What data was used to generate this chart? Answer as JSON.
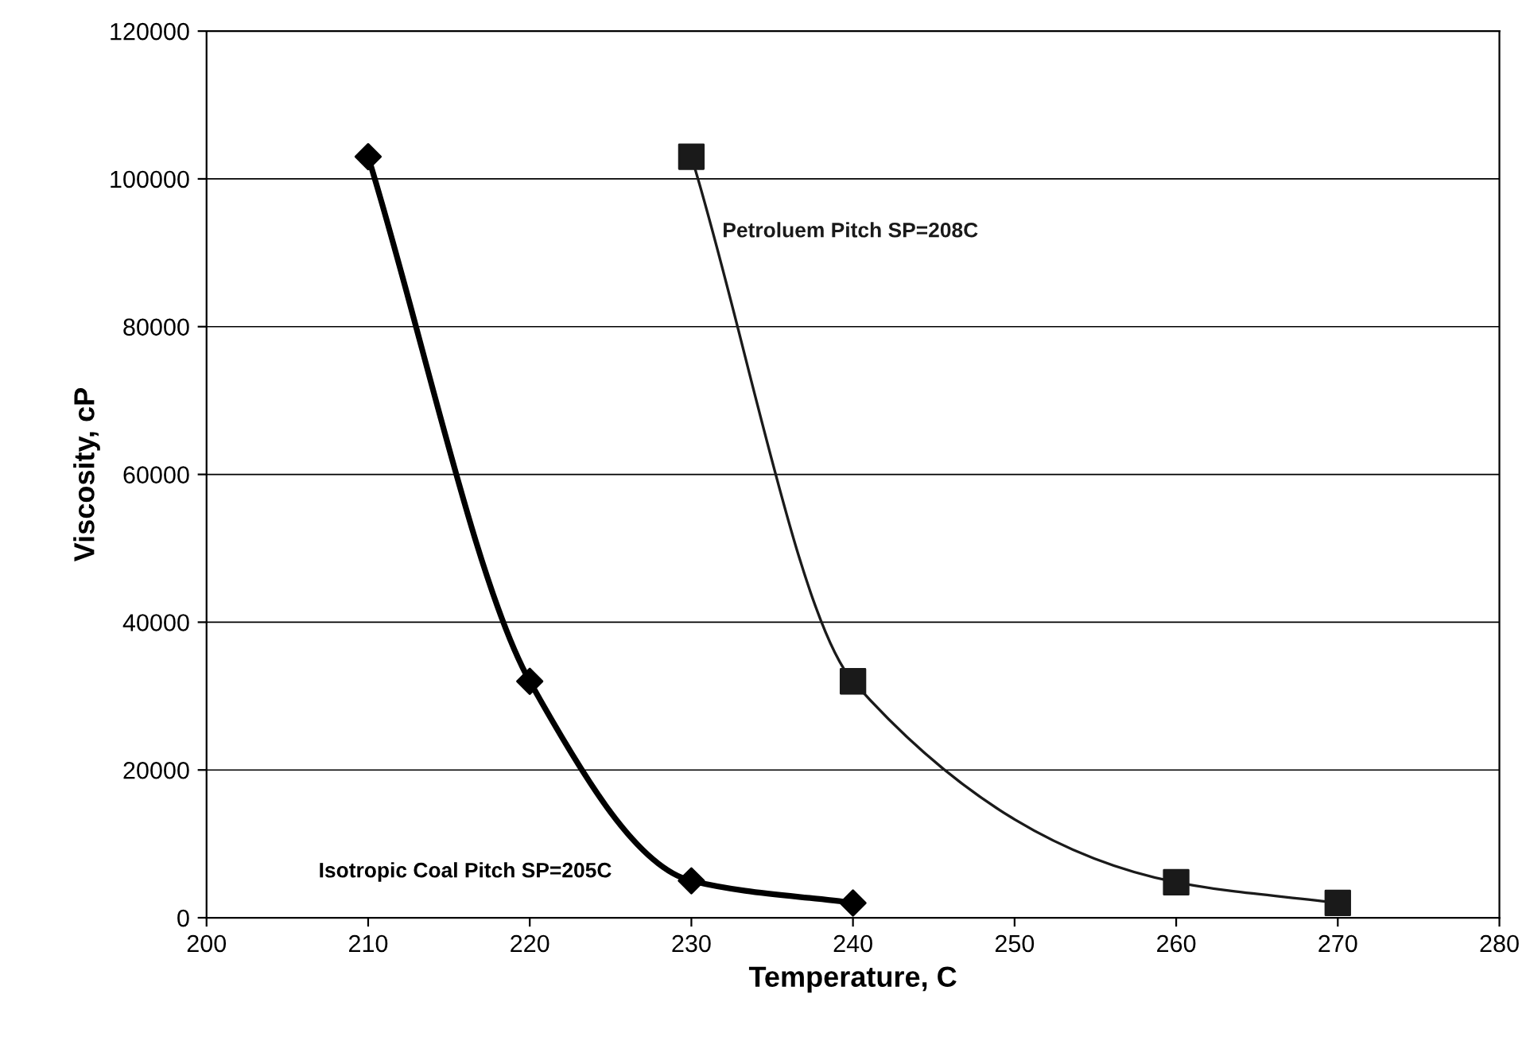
{
  "chart_data": {
    "type": "line",
    "xlabel": "Temperature, C",
    "ylabel": "Viscosity, cP",
    "xlim": [
      200,
      280
    ],
    "xticks": [
      200,
      210,
      220,
      230,
      240,
      250,
      260,
      270,
      280
    ],
    "ylim": [
      0,
      120000
    ],
    "yticks": [
      0,
      20000,
      40000,
      60000,
      80000,
      100000,
      120000
    ],
    "grid": "y",
    "legend": false,
    "series": [
      {
        "name": "Isotropic Coal Pitch SP=205C",
        "color": "#000000",
        "marker": "diamond",
        "x": [
          210,
          220,
          230,
          240
        ],
        "values": [
          103000,
          32000,
          5000,
          2000
        ]
      },
      {
        "name": "Petroluem Pitch SP=208C",
        "color": "#1a1a1a",
        "marker": "square",
        "x": [
          230,
          240,
          260,
          270
        ],
        "values": [
          103000,
          32000,
          4800,
          2000
        ]
      }
    ]
  }
}
